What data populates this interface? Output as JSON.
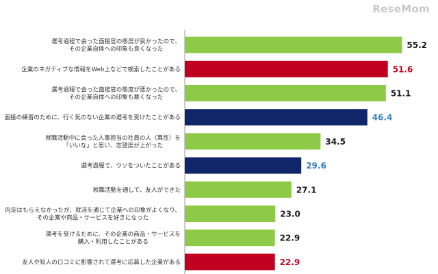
{
  "watermark": "ReseMom",
  "colors": {
    "green": "#8cca48",
    "red": "#c0001e",
    "navy": "#10266a",
    "value_default": "#1a1a1a",
    "value_red": "#c0001e",
    "value_blue": "#3a7fc4",
    "axis": "#9a9a9a"
  },
  "chart_data": {
    "type": "bar",
    "orientation": "horizontal",
    "title": "",
    "xlabel": "",
    "ylabel": "",
    "xlim": [
      0,
      60
    ],
    "grid": false,
    "legend": "none",
    "categories": [
      [
        "選考過程で会った面接官の態度が良かったので、",
        "その企業自体への印象も良くなった"
      ],
      [
        "企業のネガティブな情報をWeb上などで検索したことがある"
      ],
      [
        "選考過程で会った面接官の態度が悪かったので、",
        "その企業自体への印象も悪くなった"
      ],
      [
        "面接の練習のために、行く気のない企業の選考を受けたことがある"
      ],
      [
        "就職活動中に会った人事担当の社員の人（異性）を",
        "「いいな」と思い、志望度が上がった"
      ],
      [
        "選考過程で、ウソをついたことがある"
      ],
      [
        "就職活動を通して、友人ができた"
      ],
      [
        "内定はもらえなかったが、就活を通じて企業への印象がよくなり、",
        "その企業や商品・サービスを好きになった"
      ],
      [
        "選考を受けるために、その企業の商品・サービスを",
        "購入・利用したことがある"
      ],
      [
        "友人や知人の口コミに影響されて選考に応募した企業がある"
      ]
    ],
    "values": [
      55.2,
      51.6,
      51.1,
      46.4,
      34.5,
      29.6,
      27.1,
      23.0,
      22.9,
      22.9
    ],
    "value_labels": [
      "55.2",
      "51.6",
      "51.1",
      "46.4",
      "34.5",
      "29.6",
      "27.1",
      "23.0",
      "22.9",
      "22.9"
    ],
    "bar_colors": [
      "green",
      "red",
      "green",
      "navy",
      "green",
      "navy",
      "green",
      "green",
      "green",
      "red"
    ],
    "label_colors": [
      "value_default",
      "value_red",
      "value_default",
      "value_blue",
      "value_default",
      "value_blue",
      "value_default",
      "value_default",
      "value_default",
      "value_red"
    ]
  }
}
